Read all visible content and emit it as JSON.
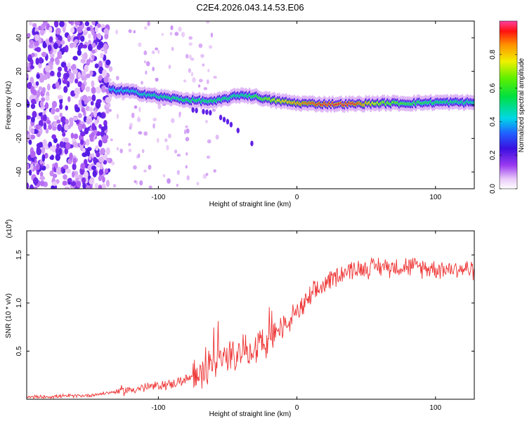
{
  "title": "C2E4.2026.043.14.53.E06",
  "chart_data": [
    {
      "type": "heatmap",
      "name": "spectrogram",
      "xlabel": "Height of straight line (km)",
      "ylabel": "Frequency (Hz)",
      "xlim": [
        -195,
        128
      ],
      "ylim": [
        -50,
        50
      ],
      "xticks": [
        -100,
        0,
        100
      ],
      "yticks": [
        -40,
        -20,
        0,
        20,
        40
      ],
      "colorbar": {
        "label": "Normalized spectral amplitude",
        "range": [
          0,
          1
        ],
        "ticks": [
          0.0,
          0.2,
          0.4,
          0.6,
          0.8
        ]
      },
      "ridge": {
        "x": [
          -135,
          -120,
          -100,
          -80,
          -60,
          -40,
          -30,
          -20,
          -10,
          0,
          20,
          40,
          60,
          80,
          100,
          128
        ],
        "frequency": [
          9,
          8,
          5,
          3,
          2,
          6,
          5,
          3,
          2,
          1,
          0.5,
          0.5,
          1,
          1,
          1.5,
          1.5
        ],
        "amplitude": [
          0.4,
          0.45,
          0.5,
          0.55,
          0.55,
          0.5,
          0.6,
          0.7,
          0.8,
          0.85,
          0.95,
          0.95,
          0.7,
          0.6,
          0.55,
          0.5
        ]
      },
      "branch": {
        "x": [
          -75,
          -60,
          -50,
          -40,
          -30
        ],
        "frequency": [
          -3,
          -5,
          -10,
          -17,
          -25
        ]
      },
      "noise_region": {
        "x_from": -195,
        "x_to": -135
      }
    },
    {
      "type": "line",
      "name": "snr",
      "xlabel": "Height of straight line (km)",
      "ylabel": "SNR (10 * v/v)",
      "scale_note": "(x10",
      "scale_exp": "4",
      "xlim": [
        -195,
        128
      ],
      "ylim": [
        0,
        1.75
      ],
      "xticks": [
        -100,
        0,
        100
      ],
      "yticks": [
        0.5,
        1.0,
        1.5
      ],
      "ytick_labels": [
        "0.5",
        "1.0",
        "1.5"
      ],
      "color": "#ee3333",
      "envelope": {
        "x": [
          -195,
          -150,
          -130,
          -110,
          -90,
          -70,
          -60,
          -50,
          -40,
          -30,
          -20,
          -10,
          0,
          10,
          20,
          30,
          40,
          60,
          80,
          100,
          128
        ],
        "y": [
          0.02,
          0.04,
          0.08,
          0.12,
          0.16,
          0.25,
          0.35,
          0.45,
          0.5,
          0.55,
          0.6,
          0.75,
          0.9,
          1.05,
          1.2,
          1.3,
          1.35,
          1.38,
          1.38,
          1.36,
          1.35
        ]
      }
    }
  ]
}
